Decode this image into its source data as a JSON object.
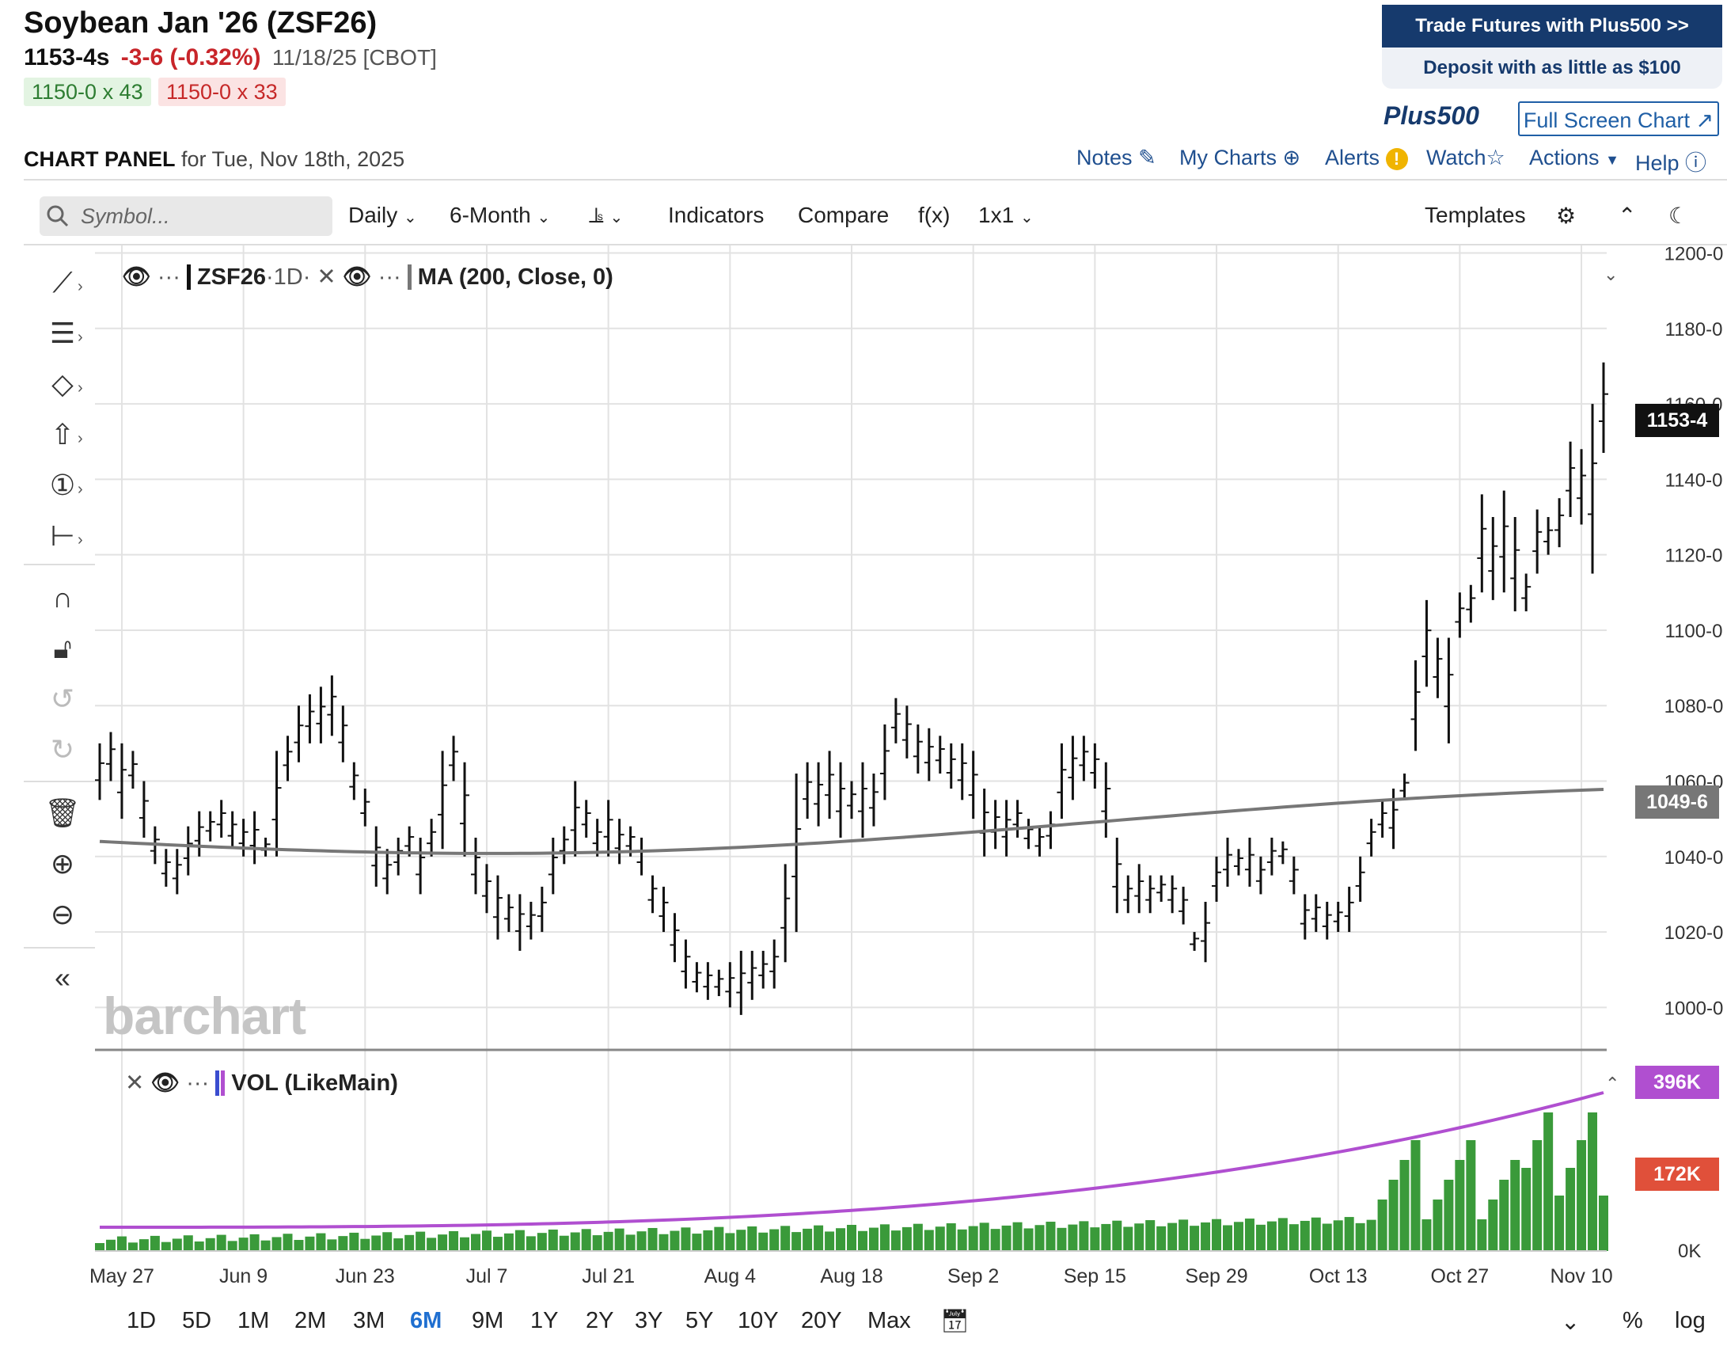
{
  "header": {
    "title": "Soybean Jan '26 (ZSF26)",
    "last": "1153-4s",
    "change": "-3-6 (-0.32%)",
    "date": "11/18/25 [CBOT]",
    "bid": "1150-0 x 43",
    "ask": "1150-0 x 33"
  },
  "ad": {
    "line1": "Trade Futures with Plus500 >>",
    "line2": "Deposit with as little as $100",
    "logo": "Plus500"
  },
  "fullscreen_label": "Full Screen Chart ↗",
  "panel": {
    "title": "CHART PANEL",
    "subtitle": "for Tue, Nov 18th, 2025"
  },
  "links": {
    "notes": "Notes",
    "mycharts": "My Charts",
    "alerts": "Alerts",
    "watch": "Watch",
    "actions": "Actions",
    "help": "Help"
  },
  "toolbar": {
    "symbol_placeholder": "Symbol...",
    "period": "Daily",
    "range": "6-Month",
    "indicators": "Indicators",
    "compare": "Compare",
    "fx": "f(x)",
    "layout": "1x1",
    "templates": "Templates"
  },
  "legend": {
    "symbol": "ZSF26",
    "interval": "·1D·",
    "study": "MA (200, Close, 0)",
    "volume": "VOL (LikeMain)"
  },
  "brand": "barchart",
  "ranges": [
    "1D",
    "5D",
    "1M",
    "2M",
    "3M",
    "6M",
    "9M",
    "1Y",
    "2Y",
    "3Y",
    "5Y",
    "10Y",
    "20Y",
    "Max"
  ],
  "active_range": "6M",
  "footer": {
    "percent": "%",
    "log": "log"
  },
  "colors": {
    "up": "#3a9a3a",
    "down": "#e0503a",
    "ma": "#777777",
    "vol_ma": "#b04fd0",
    "link": "#1f4f8f",
    "brand_blue": "#163a6d"
  },
  "chart_data": {
    "type": "ohlc-bar",
    "symbol": "ZSF26",
    "price_axis": {
      "ticks": [
        "1200-0",
        "1180-0",
        "1160-0",
        "1140-0",
        "1120-0",
        "1100-0",
        "1080-0",
        "1060-0",
        "1040-0",
        "1020-0",
        "1000-0"
      ],
      "ylim": [
        990,
        1202
      ]
    },
    "x_ticks": [
      "May 27",
      "Jun 9",
      "Jun 23",
      "Jul 7",
      "Jul 21",
      "Aug 4",
      "Aug 18",
      "Sep 2",
      "Sep 15",
      "Sep 29",
      "Oct 13",
      "Oct 27",
      "Nov 10"
    ],
    "last_price_label": "1153-4",
    "ma_label": "1049-6",
    "volume_axis": {
      "ticks": [
        "0K"
      ]
    },
    "volume_labels": {
      "vol_ma": "396K",
      "last_vol": "172K"
    },
    "bars": [
      [
        1070,
        1055
      ],
      [
        1073,
        1060
      ],
      [
        1070,
        1050
      ],
      [
        1068,
        1058
      ],
      [
        1060,
        1045
      ],
      [
        1048,
        1038
      ],
      [
        1042,
        1032
      ],
      [
        1042,
        1030
      ],
      [
        1048,
        1035
      ],
      [
        1052,
        1040
      ],
      [
        1052,
        1044
      ],
      [
        1055,
        1045
      ],
      [
        1052,
        1042
      ],
      [
        1050,
        1040
      ],
      [
        1052,
        1038
      ],
      [
        1045,
        1040
      ],
      [
        1068,
        1040
      ],
      [
        1072,
        1060
      ],
      [
        1080,
        1065
      ],
      [
        1083,
        1070
      ],
      [
        1085,
        1070
      ],
      [
        1088,
        1072
      ],
      [
        1080,
        1065
      ],
      [
        1065,
        1055
      ],
      [
        1058,
        1048
      ],
      [
        1048,
        1032
      ],
      [
        1042,
        1030
      ],
      [
        1045,
        1035
      ],
      [
        1048,
        1040
      ],
      [
        1045,
        1030
      ],
      [
        1050,
        1040
      ],
      [
        1068,
        1042
      ],
      [
        1072,
        1060
      ],
      [
        1065,
        1040
      ],
      [
        1045,
        1030
      ],
      [
        1038,
        1025
      ],
      [
        1035,
        1018
      ],
      [
        1030,
        1020
      ],
      [
        1030,
        1015
      ],
      [
        1028,
        1018
      ],
      [
        1032,
        1020
      ],
      [
        1045,
        1030
      ],
      [
        1048,
        1038
      ],
      [
        1060,
        1040
      ],
      [
        1055,
        1045
      ],
      [
        1050,
        1040
      ],
      [
        1055,
        1040
      ],
      [
        1050,
        1038
      ],
      [
        1048,
        1040
      ],
      [
        1045,
        1035
      ],
      [
        1035,
        1025
      ],
      [
        1032,
        1020
      ],
      [
        1025,
        1012
      ],
      [
        1018,
        1005
      ],
      [
        1012,
        1004
      ],
      [
        1012,
        1002
      ],
      [
        1010,
        1003
      ],
      [
        1012,
        1000
      ],
      [
        1015,
        998
      ],
      [
        1015,
        1002
      ],
      [
        1015,
        1005
      ],
      [
        1018,
        1005
      ],
      [
        1038,
        1012
      ],
      [
        1062,
        1020
      ],
      [
        1065,
        1050
      ],
      [
        1065,
        1048
      ],
      [
        1068,
        1050
      ],
      [
        1065,
        1045
      ],
      [
        1060,
        1050
      ],
      [
        1065,
        1045
      ],
      [
        1062,
        1048
      ],
      [
        1075,
        1055
      ],
      [
        1082,
        1070
      ],
      [
        1080,
        1066
      ],
      [
        1075,
        1062
      ],
      [
        1074,
        1060
      ],
      [
        1072,
        1062
      ],
      [
        1070,
        1058
      ],
      [
        1070,
        1055
      ],
      [
        1068,
        1050
      ],
      [
        1058,
        1040
      ],
      [
        1055,
        1042
      ],
      [
        1055,
        1040
      ],
      [
        1055,
        1045
      ],
      [
        1050,
        1042
      ],
      [
        1048,
        1040
      ],
      [
        1052,
        1042
      ],
      [
        1070,
        1050
      ],
      [
        1072,
        1055
      ],
      [
        1072,
        1060
      ],
      [
        1070,
        1058
      ],
      [
        1065,
        1045
      ],
      [
        1045,
        1025
      ],
      [
        1035,
        1025
      ],
      [
        1038,
        1025
      ],
      [
        1035,
        1025
      ],
      [
        1035,
        1028
      ],
      [
        1035,
        1025
      ],
      [
        1032,
        1022
      ],
      [
        1020,
        1015
      ],
      [
        1028,
        1012
      ],
      [
        1040,
        1028
      ],
      [
        1045,
        1032
      ],
      [
        1042,
        1035
      ],
      [
        1045,
        1032
      ],
      [
        1040,
        1030
      ],
      [
        1045,
        1035
      ],
      [
        1044,
        1038
      ],
      [
        1040,
        1030
      ],
      [
        1030,
        1018
      ],
      [
        1030,
        1020
      ],
      [
        1028,
        1018
      ],
      [
        1028,
        1020
      ],
      [
        1032,
        1020
      ],
      [
        1040,
        1028
      ],
      [
        1050,
        1040
      ],
      [
        1055,
        1045
      ],
      [
        1058,
        1042
      ],
      [
        1062,
        1055
      ],
      [
        1092,
        1068
      ],
      [
        1108,
        1085
      ],
      [
        1098,
        1082
      ],
      [
        1098,
        1070
      ],
      [
        1110,
        1098
      ],
      [
        1112,
        1102
      ],
      [
        1136,
        1110
      ],
      [
        1130,
        1108
      ],
      [
        1137,
        1110
      ],
      [
        1130,
        1105
      ],
      [
        1115,
        1105
      ],
      [
        1132,
        1115
      ],
      [
        1130,
        1120
      ],
      [
        1135,
        1122
      ],
      [
        1150,
        1130
      ],
      [
        1148,
        1128
      ],
      [
        1160,
        1115
      ],
      [
        1171,
        1147
      ]
    ],
    "ma_start": 1044,
    "ma_end": 1050
  }
}
